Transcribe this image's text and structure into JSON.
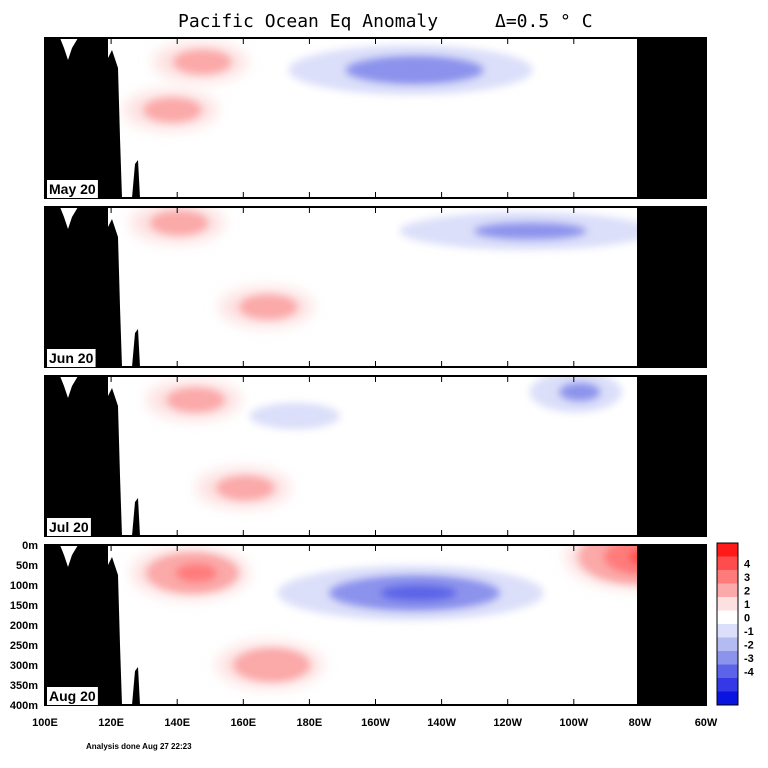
{
  "chart_data": {
    "type": "heatmap",
    "title": "Pacific Ocean Eq Anomaly",
    "contour_interval": "Δ=0.5 ° C",
    "x_ticks": [
      "100E",
      "120E",
      "140E",
      "160E",
      "180E",
      "160W",
      "140W",
      "120W",
      "100W",
      "80W",
      "60W"
    ],
    "y_ticks": [
      "0m",
      "50m",
      "100m",
      "150m",
      "200m",
      "250m",
      "300m",
      "350m",
      "400m"
    ],
    "colorbar": {
      "labels": [
        "4",
        "3",
        "2",
        "1",
        "0",
        "-1",
        "-2",
        "-3",
        "-4"
      ],
      "colors": [
        "#ff1a1a",
        "#ff4d4d",
        "#ff7b7b",
        "#fba9a9",
        "#fde0e0",
        "#ffffff",
        "#dcdff9",
        "#b4baf2",
        "#8c93ec",
        "#5c63e8",
        "#3439e5",
        "#0a14e0"
      ]
    },
    "panels": [
      {
        "label": "May 20",
        "anomalies": [
          {
            "type": "cold",
            "lon_center": "150W",
            "depth_center_m": 80,
            "min_value": -2.5,
            "lon_extent": [
              "175E",
              "95W"
            ],
            "depth_extent_m": [
              20,
              170
            ]
          },
          {
            "type": "warm",
            "lon_center": "147E",
            "depth_center_m": 60,
            "max_value": 1.0
          },
          {
            "type": "warm",
            "lon_center": "138E",
            "depth_center_m": 180,
            "max_value": 1.0
          }
        ]
      },
      {
        "label": "Jun 20",
        "anomalies": [
          {
            "type": "cold",
            "lon_center": "115W",
            "depth_center_m": 60,
            "min_value": -2.0,
            "lon_extent": [
              "170E",
              "92W"
            ],
            "depth_extent_m": [
              10,
              130
            ]
          },
          {
            "type": "warm",
            "lon_center": "140E",
            "depth_center_m": 40,
            "max_value": 1.0
          },
          {
            "type": "warm",
            "lon_center": "167E",
            "depth_center_m": 250,
            "max_value": 1.0
          }
        ]
      },
      {
        "label": "Jul 20",
        "anomalies": [
          {
            "type": "cold",
            "lon_center": "175E",
            "depth_center_m": 100,
            "min_value": -1.5,
            "lon_extent": [
              "162E",
              "160W"
            ],
            "depth_extent_m": [
              60,
              150
            ]
          },
          {
            "type": "cold",
            "lon_center": "100W",
            "depth_center_m": 40,
            "min_value": -2.0
          },
          {
            "type": "warm",
            "lon_center": "145E",
            "depth_center_m": 60,
            "max_value": 1.0
          },
          {
            "type": "warm",
            "lon_center": "160E",
            "depth_center_m": 280,
            "max_value": 1.0
          }
        ]
      },
      {
        "label": "Aug 20",
        "anomalies": [
          {
            "type": "cold",
            "lon_center": "150W",
            "depth_center_m": 120,
            "min_value": -3.0,
            "lon_extent": [
              "175E",
              "90W"
            ],
            "depth_extent_m": [
              40,
              200
            ]
          },
          {
            "type": "warm",
            "lon_center": "144E",
            "depth_center_m": 70,
            "max_value": 2.0
          },
          {
            "type": "warm",
            "lon_center": "168E",
            "depth_center_m": 300,
            "max_value": 1.5
          },
          {
            "type": "warm",
            "lon_center": "81W",
            "depth_center_m": 30,
            "max_value": 3.0
          }
        ]
      }
    ]
  },
  "footer": "Analysis done Aug 27 22:23"
}
